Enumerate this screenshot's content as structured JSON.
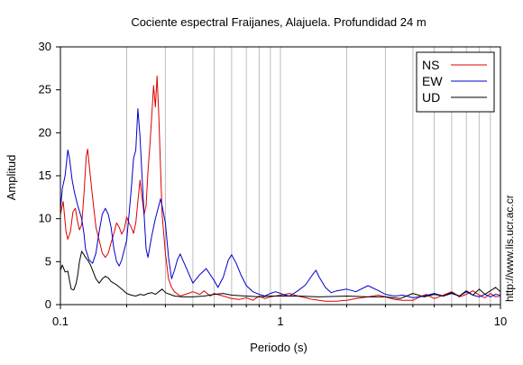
{
  "chart_data": {
    "type": "line",
    "title": "Cociente espectral Fraijanes, Alajuela. Profundidad 24 m",
    "xlabel": "Periodo (s)",
    "ylabel": "Amplitud",
    "xscale": "log",
    "xlim": [
      0.1,
      10
    ],
    "ylim": [
      0,
      30
    ],
    "x_ticks": [
      {
        "value": 0.1,
        "label": "0.1"
      },
      {
        "value": 1,
        "label": "1"
      },
      {
        "value": 10,
        "label": "10"
      }
    ],
    "y_ticks": [
      {
        "value": 0,
        "label": "0"
      },
      {
        "value": 5,
        "label": "5"
      },
      {
        "value": 10,
        "label": "10"
      },
      {
        "value": 15,
        "label": "15"
      },
      {
        "value": 20,
        "label": "20"
      },
      {
        "value": 25,
        "label": "25"
      },
      {
        "value": 30,
        "label": "30"
      }
    ],
    "grid": "vertical, major and minor (log x)",
    "legend_position": "top-right",
    "side_note": "http://www.lis.ucr.ac.cr",
    "series": [
      {
        "name": "NS",
        "color": "#dd0000",
        "points": [
          [
            0.1,
            10.5
          ],
          [
            0.103,
            12.0
          ],
          [
            0.106,
            8.5
          ],
          [
            0.108,
            7.6
          ],
          [
            0.111,
            8.5
          ],
          [
            0.114,
            10.8
          ],
          [
            0.117,
            11.2
          ],
          [
            0.12,
            9.5
          ],
          [
            0.122,
            8.7
          ],
          [
            0.125,
            9.3
          ],
          [
            0.128,
            13.0
          ],
          [
            0.131,
            17.2
          ],
          [
            0.133,
            18.1
          ],
          [
            0.136,
            15.5
          ],
          [
            0.14,
            12.5
          ],
          [
            0.145,
            9.0
          ],
          [
            0.15,
            7.5
          ],
          [
            0.155,
            6.0
          ],
          [
            0.16,
            5.5
          ],
          [
            0.165,
            6.0
          ],
          [
            0.17,
            7.2
          ],
          [
            0.175,
            8.3
          ],
          [
            0.18,
            9.5
          ],
          [
            0.185,
            9.0
          ],
          [
            0.19,
            8.2
          ],
          [
            0.195,
            8.8
          ],
          [
            0.2,
            10.2
          ],
          [
            0.205,
            9.5
          ],
          [
            0.21,
            9.0
          ],
          [
            0.215,
            8.3
          ],
          [
            0.22,
            9.5
          ],
          [
            0.225,
            12.0
          ],
          [
            0.23,
            14.5
          ],
          [
            0.235,
            12.5
          ],
          [
            0.24,
            10.5
          ],
          [
            0.245,
            11.5
          ],
          [
            0.25,
            15.5
          ],
          [
            0.255,
            18.5
          ],
          [
            0.26,
            22.0
          ],
          [
            0.265,
            25.5
          ],
          [
            0.27,
            23.0
          ],
          [
            0.275,
            26.6
          ],
          [
            0.28,
            22.0
          ],
          [
            0.285,
            16.0
          ],
          [
            0.29,
            10.5
          ],
          [
            0.3,
            6.0
          ],
          [
            0.31,
            3.0
          ],
          [
            0.32,
            2.0
          ],
          [
            0.33,
            1.5
          ],
          [
            0.35,
            1.0
          ],
          [
            0.38,
            1.3
          ],
          [
            0.4,
            1.5
          ],
          [
            0.43,
            1.2
          ],
          [
            0.45,
            1.6
          ],
          [
            0.48,
            1.0
          ],
          [
            0.5,
            1.3
          ],
          [
            0.55,
            1.0
          ],
          [
            0.6,
            0.7
          ],
          [
            0.65,
            0.6
          ],
          [
            0.7,
            0.8
          ],
          [
            0.75,
            0.5
          ],
          [
            0.8,
            1.0
          ],
          [
            0.85,
            0.7
          ],
          [
            0.9,
            0.9
          ],
          [
            1.0,
            1.1
          ],
          [
            1.1,
            1.3
          ],
          [
            1.2,
            1.0
          ],
          [
            1.3,
            0.8
          ],
          [
            1.4,
            0.6
          ],
          [
            1.5,
            0.5
          ],
          [
            1.6,
            0.4
          ],
          [
            1.8,
            0.4
          ],
          [
            2.0,
            0.5
          ],
          [
            2.2,
            0.7
          ],
          [
            2.5,
            0.9
          ],
          [
            2.8,
            1.1
          ],
          [
            3.0,
            0.9
          ],
          [
            3.3,
            0.6
          ],
          [
            3.6,
            0.5
          ],
          [
            4.0,
            0.5
          ],
          [
            4.3,
            0.9
          ],
          [
            4.6,
            1.2
          ],
          [
            5.0,
            0.7
          ],
          [
            5.5,
            1.1
          ],
          [
            6.0,
            1.5
          ],
          [
            6.5,
            0.9
          ],
          [
            7.0,
            1.2
          ],
          [
            7.5,
            1.6
          ],
          [
            8.0,
            1.1
          ],
          [
            8.5,
            0.8
          ],
          [
            9.0,
            1.3
          ],
          [
            9.5,
            0.9
          ],
          [
            10,
            1.0
          ]
        ]
      },
      {
        "name": "EW",
        "color": "#0000cc",
        "points": [
          [
            0.1,
            11.0
          ],
          [
            0.102,
            13.5
          ],
          [
            0.105,
            15.0
          ],
          [
            0.108,
            18.0
          ],
          [
            0.11,
            17.0
          ],
          [
            0.113,
            14.5
          ],
          [
            0.116,
            13.0
          ],
          [
            0.12,
            11.5
          ],
          [
            0.125,
            10.0
          ],
          [
            0.128,
            8.2
          ],
          [
            0.13,
            6.5
          ],
          [
            0.135,
            5.2
          ],
          [
            0.14,
            4.8
          ],
          [
            0.145,
            6.0
          ],
          [
            0.15,
            8.5
          ],
          [
            0.155,
            10.5
          ],
          [
            0.16,
            11.2
          ],
          [
            0.165,
            10.5
          ],
          [
            0.17,
            9.0
          ],
          [
            0.175,
            6.5
          ],
          [
            0.18,
            5.0
          ],
          [
            0.185,
            4.5
          ],
          [
            0.19,
            5.2
          ],
          [
            0.2,
            7.5
          ],
          [
            0.205,
            10.5
          ],
          [
            0.21,
            13.5
          ],
          [
            0.215,
            17.0
          ],
          [
            0.22,
            18.0
          ],
          [
            0.225,
            22.8
          ],
          [
            0.23,
            19.5
          ],
          [
            0.235,
            15.0
          ],
          [
            0.24,
            10.5
          ],
          [
            0.245,
            6.5
          ],
          [
            0.25,
            5.5
          ],
          [
            0.26,
            8.0
          ],
          [
            0.27,
            10.0
          ],
          [
            0.28,
            11.5
          ],
          [
            0.285,
            12.3
          ],
          [
            0.29,
            11.5
          ],
          [
            0.3,
            9.5
          ],
          [
            0.31,
            5.5
          ],
          [
            0.32,
            3.0
          ],
          [
            0.33,
            4.0
          ],
          [
            0.34,
            5.2
          ],
          [
            0.35,
            5.9
          ],
          [
            0.37,
            4.5
          ],
          [
            0.4,
            2.5
          ],
          [
            0.43,
            3.5
          ],
          [
            0.46,
            4.2
          ],
          [
            0.5,
            2.8
          ],
          [
            0.52,
            2.0
          ],
          [
            0.55,
            3.2
          ],
          [
            0.58,
            5.2
          ],
          [
            0.6,
            5.8
          ],
          [
            0.63,
            4.8
          ],
          [
            0.66,
            3.5
          ],
          [
            0.7,
            2.2
          ],
          [
            0.75,
            1.5
          ],
          [
            0.8,
            1.2
          ],
          [
            0.85,
            1.0
          ],
          [
            0.9,
            1.3
          ],
          [
            0.95,
            1.5
          ],
          [
            1.0,
            1.3
          ],
          [
            1.05,
            1.1
          ],
          [
            1.1,
            1.0
          ],
          [
            1.2,
            1.6
          ],
          [
            1.3,
            2.3
          ],
          [
            1.4,
            3.5
          ],
          [
            1.45,
            4.0
          ],
          [
            1.5,
            3.2
          ],
          [
            1.6,
            2.0
          ],
          [
            1.7,
            1.4
          ],
          [
            1.8,
            1.6
          ],
          [
            2.0,
            1.8
          ],
          [
            2.2,
            1.5
          ],
          [
            2.5,
            2.2
          ],
          [
            2.8,
            1.6
          ],
          [
            3.0,
            1.2
          ],
          [
            3.3,
            1.0
          ],
          [
            3.6,
            1.1
          ],
          [
            4.0,
            0.8
          ],
          [
            4.5,
            1.0
          ],
          [
            5.0,
            1.3
          ],
          [
            5.5,
            1.0
          ],
          [
            6.0,
            1.3
          ],
          [
            6.5,
            1.0
          ],
          [
            7.0,
            1.5
          ],
          [
            7.5,
            1.1
          ],
          [
            8.0,
            0.9
          ],
          [
            8.5,
            1.2
          ],
          [
            9.0,
            0.9
          ],
          [
            9.5,
            1.2
          ],
          [
            10,
            1.1
          ]
        ]
      },
      {
        "name": "UD",
        "color": "#000000",
        "points": [
          [
            0.1,
            4.0
          ],
          [
            0.102,
            4.6
          ],
          [
            0.105,
            3.8
          ],
          [
            0.108,
            3.9
          ],
          [
            0.11,
            2.8
          ],
          [
            0.112,
            1.8
          ],
          [
            0.115,
            1.7
          ],
          [
            0.118,
            2.5
          ],
          [
            0.12,
            3.5
          ],
          [
            0.122,
            5.0
          ],
          [
            0.125,
            6.2
          ],
          [
            0.128,
            5.8
          ],
          [
            0.13,
            5.5
          ],
          [
            0.133,
            5.2
          ],
          [
            0.137,
            4.6
          ],
          [
            0.14,
            4.0
          ],
          [
            0.145,
            3.0
          ],
          [
            0.15,
            2.5
          ],
          [
            0.155,
            3.0
          ],
          [
            0.16,
            3.3
          ],
          [
            0.165,
            3.1
          ],
          [
            0.17,
            2.7
          ],
          [
            0.18,
            2.3
          ],
          [
            0.19,
            1.8
          ],
          [
            0.2,
            1.3
          ],
          [
            0.21,
            1.1
          ],
          [
            0.22,
            1.0
          ],
          [
            0.23,
            1.2
          ],
          [
            0.24,
            1.1
          ],
          [
            0.25,
            1.3
          ],
          [
            0.26,
            1.4
          ],
          [
            0.27,
            1.2
          ],
          [
            0.28,
            1.5
          ],
          [
            0.29,
            1.8
          ],
          [
            0.3,
            1.4
          ],
          [
            0.33,
            1.0
          ],
          [
            0.36,
            0.9
          ],
          [
            0.4,
            0.9
          ],
          [
            0.45,
            1.0
          ],
          [
            0.5,
            1.2
          ],
          [
            0.55,
            1.3
          ],
          [
            0.6,
            1.1
          ],
          [
            0.7,
            1.0
          ],
          [
            0.8,
            0.9
          ],
          [
            0.9,
            1.0
          ],
          [
            1.0,
            1.0
          ],
          [
            1.2,
            1.0
          ],
          [
            1.5,
            0.9
          ],
          [
            2.0,
            1.0
          ],
          [
            2.5,
            0.9
          ],
          [
            3.0,
            0.9
          ],
          [
            3.5,
            0.7
          ],
          [
            4.0,
            1.3
          ],
          [
            4.5,
            0.9
          ],
          [
            5.0,
            1.2
          ],
          [
            5.5,
            1.0
          ],
          [
            6.0,
            1.4
          ],
          [
            6.5,
            1.0
          ],
          [
            7.0,
            1.6
          ],
          [
            7.5,
            1.1
          ],
          [
            8.0,
            1.8
          ],
          [
            8.5,
            1.2
          ],
          [
            9.0,
            1.6
          ],
          [
            9.5,
            2.0
          ],
          [
            10,
            1.5
          ]
        ]
      }
    ]
  }
}
